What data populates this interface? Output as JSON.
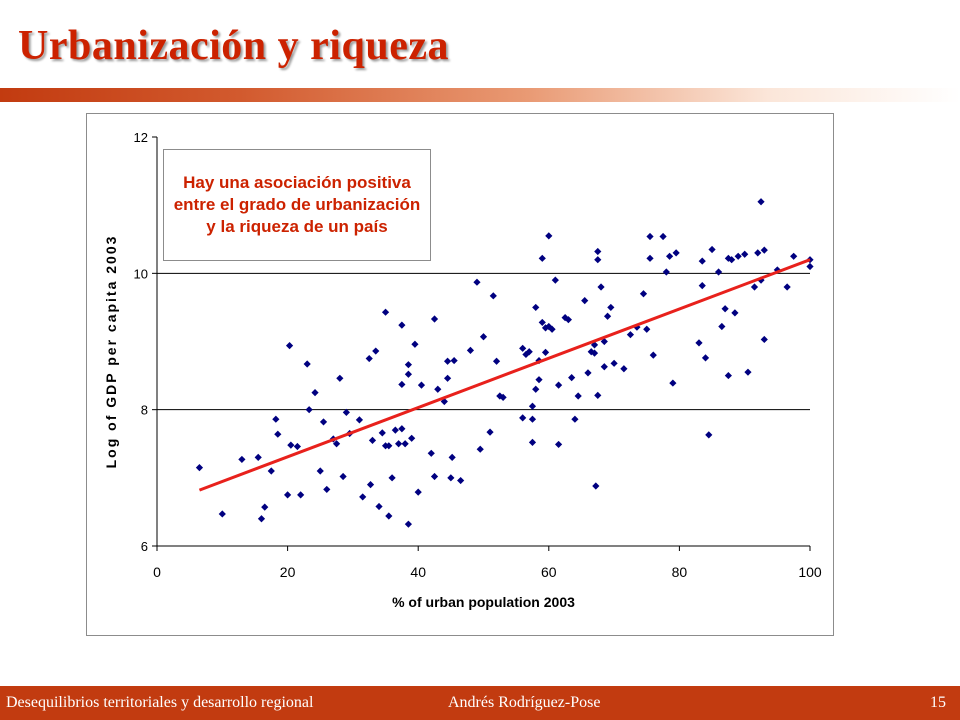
{
  "slide": {
    "title": "Urbanización y riqueza",
    "annotation": "Hay una asociación positiva entre el grado de urbanización y la riqueza de un país"
  },
  "footer": {
    "left": "Desequilibrios territoriales y desarrollo regional",
    "center": "Andrés  Rodríguez-Pose",
    "page": "15"
  },
  "colors": {
    "accent": "#c23b10",
    "title": "#cc2200",
    "points": "#000080",
    "trendline": "#e8211c"
  },
  "chart_data": {
    "type": "scatter",
    "xlabel": "% of urban population 2003",
    "ylabel": "Log of GDP per capita 2003",
    "xlim": [
      0,
      100
    ],
    "ylim": [
      6,
      12
    ],
    "xticks": [
      "0",
      "20",
      "40",
      "60",
      "80",
      "100"
    ],
    "yticks": [
      "6",
      "8",
      "10",
      "12"
    ],
    "grid": "horizontal at 8 and 10",
    "trendline": {
      "x": [
        6.5,
        100
      ],
      "y": [
        6.82,
        10.2
      ]
    },
    "points": [
      [
        6.5,
        7.15
      ],
      [
        10,
        6.47
      ],
      [
        13,
        7.27
      ],
      [
        15.5,
        7.3
      ],
      [
        16,
        6.4
      ],
      [
        16.5,
        6.57
      ],
      [
        17.5,
        7.1
      ],
      [
        18.2,
        7.86
      ],
      [
        18.5,
        7.64
      ],
      [
        20,
        6.75
      ],
      [
        20.3,
        8.94
      ],
      [
        20.5,
        7.48
      ],
      [
        21.5,
        7.46
      ],
      [
        22,
        6.75
      ],
      [
        23,
        8.67
      ],
      [
        23.3,
        8.0
      ],
      [
        24.2,
        8.25
      ],
      [
        25,
        7.1
      ],
      [
        25.5,
        7.82
      ],
      [
        26,
        6.83
      ],
      [
        27,
        7.57
      ],
      [
        27.5,
        7.5
      ],
      [
        28,
        8.46
      ],
      [
        28.5,
        7.02
      ],
      [
        29,
        7.96
      ],
      [
        29.5,
        7.65
      ],
      [
        31,
        7.85
      ],
      [
        31.5,
        6.72
      ],
      [
        32.5,
        8.75
      ],
      [
        32.7,
        6.9
      ],
      [
        33,
        7.55
      ],
      [
        33.5,
        8.86
      ],
      [
        34,
        6.58
      ],
      [
        34.5,
        7.66
      ],
      [
        35,
        9.43
      ],
      [
        35,
        7.47
      ],
      [
        35.5,
        6.44
      ],
      [
        35.5,
        7.47
      ],
      [
        36,
        7.0
      ],
      [
        36.5,
        7.7
      ],
      [
        37,
        7.5
      ],
      [
        37.5,
        7.72
      ],
      [
        37.5,
        8.37
      ],
      [
        37.5,
        9.24
      ],
      [
        38,
        7.5
      ],
      [
        38.5,
        8.52
      ],
      [
        38.5,
        8.66
      ],
      [
        38.5,
        6.32
      ],
      [
        39,
        7.58
      ],
      [
        39.5,
        8.96
      ],
      [
        40,
        6.79
      ],
      [
        40.5,
        8.36
      ],
      [
        42,
        7.36
      ],
      [
        42.5,
        9.33
      ],
      [
        42.5,
        7.02
      ],
      [
        43,
        8.3
      ],
      [
        44,
        8.12
      ],
      [
        44.5,
        8.71
      ],
      [
        44.5,
        8.46
      ],
      [
        45,
        7.0
      ],
      [
        45.2,
        7.3
      ],
      [
        45.5,
        8.72
      ],
      [
        46.5,
        6.96
      ],
      [
        48,
        8.87
      ],
      [
        49,
        9.87
      ],
      [
        49.5,
        7.42
      ],
      [
        50,
        9.07
      ],
      [
        51,
        7.67
      ],
      [
        51.5,
        9.67
      ],
      [
        52,
        8.71
      ],
      [
        52.5,
        8.2
      ],
      [
        53,
        8.18
      ],
      [
        56,
        7.88
      ],
      [
        56,
        8.9
      ],
      [
        56.5,
        8.81
      ],
      [
        57,
        8.85
      ],
      [
        57.5,
        7.86
      ],
      [
        57.5,
        8.05
      ],
      [
        57.5,
        7.52
      ],
      [
        58,
        8.3
      ],
      [
        58,
        9.5
      ],
      [
        58.5,
        8.44
      ],
      [
        58.5,
        8.72
      ],
      [
        59,
        9.28
      ],
      [
        59,
        10.22
      ],
      [
        59.5,
        8.84
      ],
      [
        59.5,
        9.2
      ],
      [
        60,
        10.55
      ],
      [
        60,
        9.22
      ],
      [
        60.5,
        9.18
      ],
      [
        61,
        9.9
      ],
      [
        61.5,
        8.36
      ],
      [
        61.5,
        7.49
      ],
      [
        62.5,
        9.35
      ],
      [
        63,
        9.32
      ],
      [
        63.5,
        8.47
      ],
      [
        64,
        7.86
      ],
      [
        64.5,
        8.2
      ],
      [
        65.5,
        9.6
      ],
      [
        66,
        8.54
      ],
      [
        66.5,
        8.85
      ],
      [
        67,
        8.95
      ],
      [
        67,
        8.83
      ],
      [
        67.2,
        6.88
      ],
      [
        67.5,
        10.32
      ],
      [
        67.5,
        10.2
      ],
      [
        67.5,
        8.21
      ],
      [
        68,
        9.8
      ],
      [
        68.5,
        9.0
      ],
      [
        68.5,
        8.63
      ],
      [
        69,
        9.37
      ],
      [
        69.5,
        9.5
      ],
      [
        70,
        8.68
      ],
      [
        71.5,
        8.6
      ],
      [
        72.5,
        9.1
      ],
      [
        73.5,
        9.21
      ],
      [
        74.5,
        9.7
      ],
      [
        75,
        9.18
      ],
      [
        75.5,
        10.54
      ],
      [
        75.5,
        10.22
      ],
      [
        76,
        8.8
      ],
      [
        77.5,
        10.54
      ],
      [
        78,
        10.02
      ],
      [
        78.5,
        10.25
      ],
      [
        79,
        8.39
      ],
      [
        79.5,
        10.3
      ],
      [
        83,
        8.98
      ],
      [
        83.5,
        10.18
      ],
      [
        83.5,
        9.82
      ],
      [
        84,
        8.76
      ],
      [
        84.5,
        7.63
      ],
      [
        85,
        10.35
      ],
      [
        86,
        10.02
      ],
      [
        86.5,
        9.22
      ],
      [
        87,
        9.48
      ],
      [
        87.5,
        10.22
      ],
      [
        87.5,
        8.5
      ],
      [
        88,
        10.2
      ],
      [
        88.5,
        9.42
      ],
      [
        89,
        10.25
      ],
      [
        90,
        10.28
      ],
      [
        90.5,
        8.55
      ],
      [
        91.5,
        9.8
      ],
      [
        92,
        10.3
      ],
      [
        92.5,
        11.05
      ],
      [
        92.5,
        9.9
      ],
      [
        93,
        9.03
      ],
      [
        93,
        10.34
      ],
      [
        95,
        10.05
      ],
      [
        96.5,
        9.8
      ],
      [
        97.5,
        10.25
      ],
      [
        100,
        10.2
      ],
      [
        100,
        10.1
      ]
    ]
  }
}
